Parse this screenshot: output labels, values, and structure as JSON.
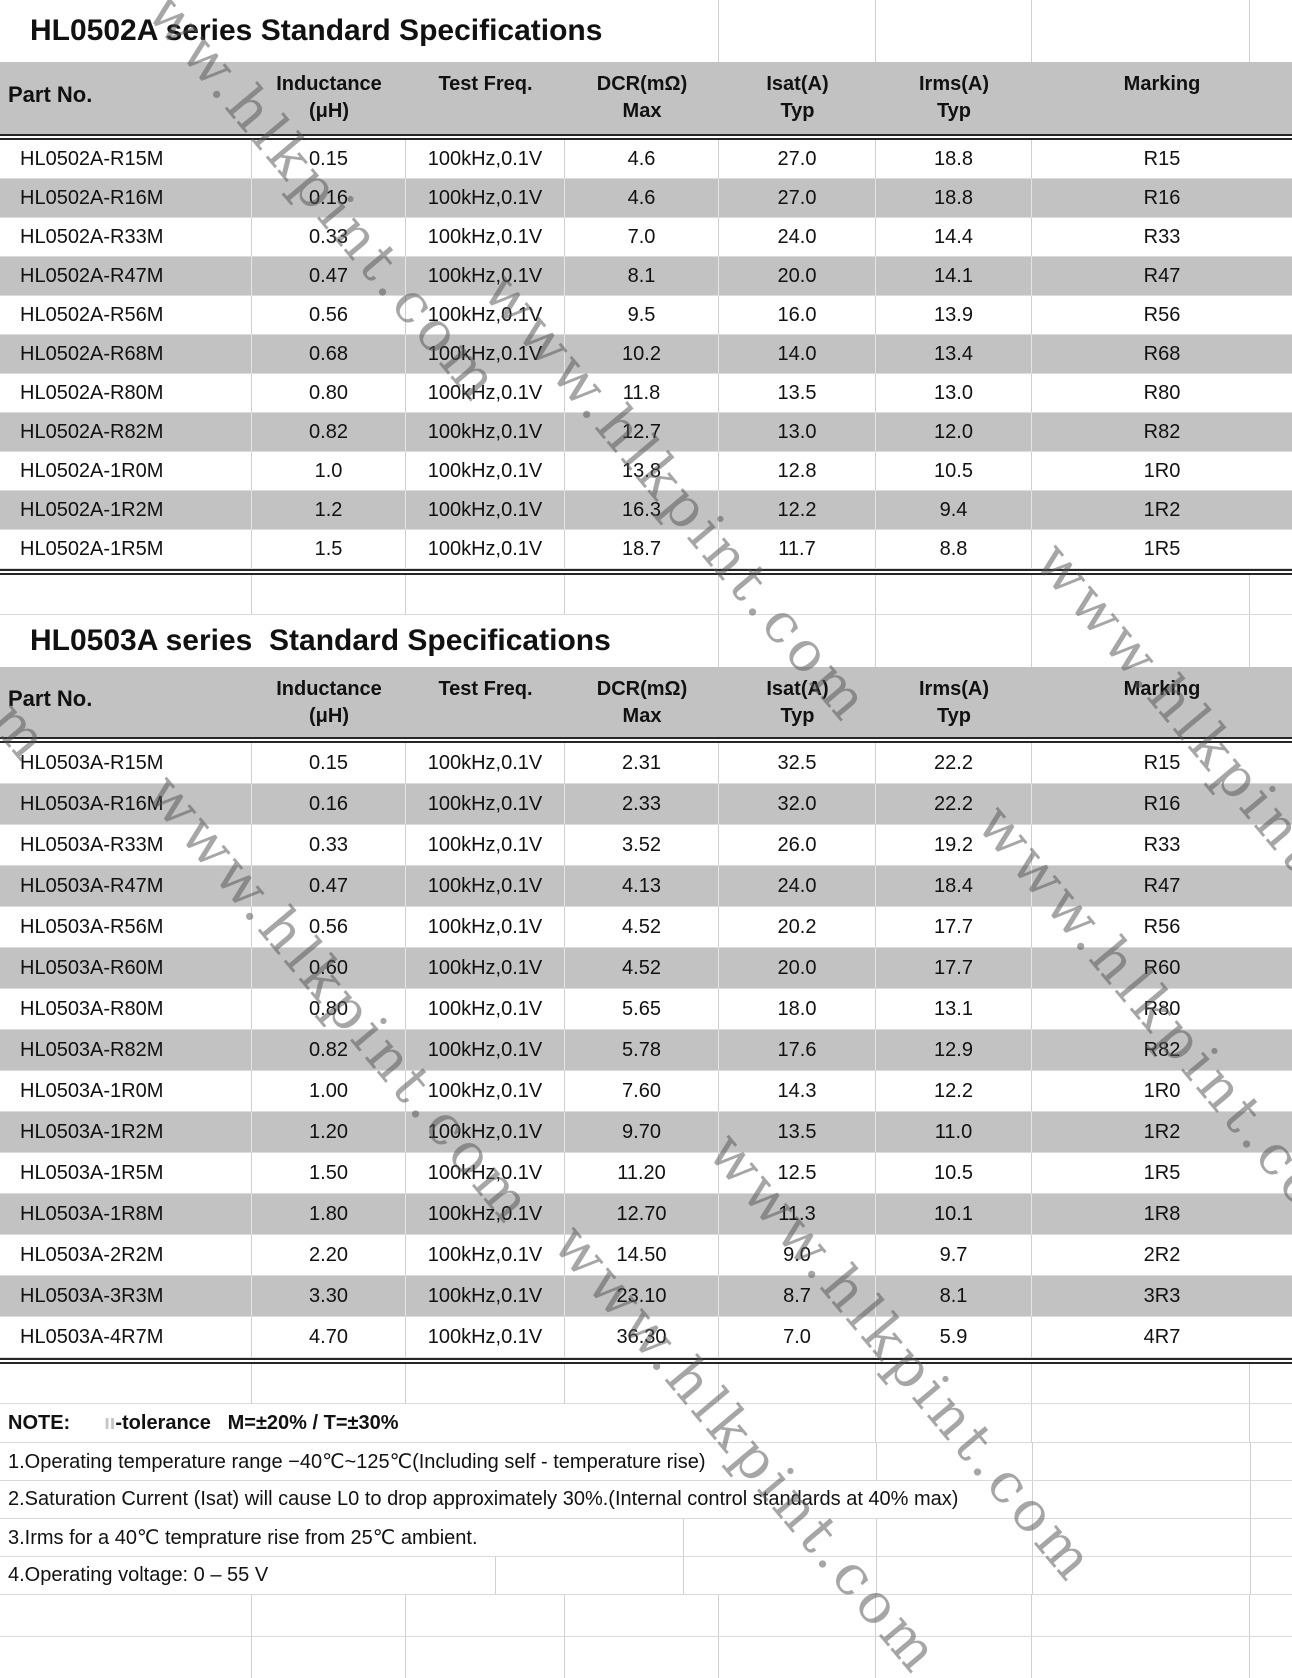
{
  "page": {
    "watermark_text": "www.hlkpint.com"
  },
  "table1": {
    "title": "HL0502A series Standard Specifications",
    "columns": [
      [
        "Part No.",
        ""
      ],
      [
        "Inductance",
        "(μH)"
      ],
      [
        "Test Freq.",
        ""
      ],
      [
        "DCR(mΩ)",
        "Max"
      ],
      [
        "Isat(A)",
        "Typ"
      ],
      [
        "Irms(A)",
        "Typ"
      ],
      [
        "Marking",
        ""
      ]
    ],
    "rows": [
      [
        "HL0502A-R15M",
        "0.15",
        "100kHz,0.1V",
        "4.6",
        "27.0",
        "18.8",
        "R15"
      ],
      [
        "HL0502A-R16M",
        "0.16",
        "100kHz,0.1V",
        "4.6",
        "27.0",
        "18.8",
        "R16"
      ],
      [
        "HL0502A-R33M",
        "0.33",
        "100kHz,0.1V",
        "7.0",
        "24.0",
        "14.4",
        "R33"
      ],
      [
        "HL0502A-R47M",
        "0.47",
        "100kHz,0.1V",
        "8.1",
        "20.0",
        "14.1",
        "R47"
      ],
      [
        "HL0502A-R56M",
        "0.56",
        "100kHz,0.1V",
        "9.5",
        "16.0",
        "13.9",
        "R56"
      ],
      [
        "HL0502A-R68M",
        "0.68",
        "100kHz,0.1V",
        "10.2",
        "14.0",
        "13.4",
        "R68"
      ],
      [
        "HL0502A-R80M",
        "0.80",
        "100kHz,0.1V",
        "11.8",
        "13.5",
        "13.0",
        "R80"
      ],
      [
        "HL0502A-R82M",
        "0.82",
        "100kHz,0.1V",
        "12.7",
        "13.0",
        "12.0",
        "R82"
      ],
      [
        "HL0502A-1R0M",
        "1.0",
        "100kHz,0.1V",
        "13.8",
        "12.8",
        "10.5",
        "1R0"
      ],
      [
        "HL0502A-1R2M",
        "1.2",
        "100kHz,0.1V",
        "16.3",
        "12.2",
        "9.4",
        "1R2"
      ],
      [
        "HL0502A-1R5M",
        "1.5",
        "100kHz,0.1V",
        "18.7",
        "11.7",
        "8.8",
        "1R5"
      ]
    ]
  },
  "table2": {
    "title": "HL0503A series  Standard Specifications",
    "columns": [
      [
        "Part No.",
        ""
      ],
      [
        "Inductance",
        "(μH)"
      ],
      [
        "Test Freq.",
        ""
      ],
      [
        "DCR(mΩ)",
        "Max"
      ],
      [
        "Isat(A)",
        "Typ"
      ],
      [
        "Irms(A)",
        "Typ"
      ],
      [
        "Marking",
        ""
      ]
    ],
    "rows": [
      [
        "HL0503A-R15M",
        "0.15",
        "100kHz,0.1V",
        "2.31",
        "32.5",
        "22.2",
        "R15"
      ],
      [
        "HL0503A-R16M",
        "0.16",
        "100kHz,0.1V",
        "2.33",
        "32.0",
        "22.2",
        "R16"
      ],
      [
        "HL0503A-R33M",
        "0.33",
        "100kHz,0.1V",
        "3.52",
        "26.0",
        "19.2",
        "R33"
      ],
      [
        "HL0503A-R47M",
        "0.47",
        "100kHz,0.1V",
        "4.13",
        "24.0",
        "18.4",
        "R47"
      ],
      [
        "HL0503A-R56M",
        "0.56",
        "100kHz,0.1V",
        "4.52",
        "20.2",
        "17.7",
        "R56"
      ],
      [
        "HL0503A-R60M",
        "0.60",
        "100kHz,0.1V",
        "4.52",
        "20.0",
        "17.7",
        "R60"
      ],
      [
        "HL0503A-R80M",
        "0.80",
        "100kHz,0.1V",
        "5.65",
        "18.0",
        "13.1",
        "R80"
      ],
      [
        "HL0503A-R82M",
        "0.82",
        "100kHz,0.1V",
        "5.78",
        "17.6",
        "12.9",
        "R82"
      ],
      [
        "HL0503A-1R0M",
        "1.00",
        "100kHz,0.1V",
        "7.60",
        "14.3",
        "12.2",
        "1R0"
      ],
      [
        "HL0503A-1R2M",
        "1.20",
        "100kHz,0.1V",
        "9.70",
        "13.5",
        "11.0",
        "1R2"
      ],
      [
        "HL0503A-1R5M",
        "1.50",
        "100kHz,0.1V",
        "11.20",
        "12.5",
        "10.5",
        "1R5"
      ],
      [
        "HL0503A-1R8M",
        "1.80",
        "100kHz,0.1V",
        "12.70",
        "11.3",
        "10.1",
        "1R8"
      ],
      [
        "HL0503A-2R2M",
        "2.20",
        "100kHz,0.1V",
        "14.50",
        "9.0",
        "9.7",
        "2R2"
      ],
      [
        "HL0503A-3R3M",
        "3.30",
        "100kHz,0.1V",
        "23.10",
        "8.7",
        "8.1",
        "3R3"
      ],
      [
        "HL0503A-4R7M",
        "4.70",
        "100kHz,0.1V",
        "36.30",
        "7.0",
        "5.9",
        "4R7"
      ]
    ]
  },
  "notes": {
    "label": "NOTE:",
    "faint_glyph": "ıı",
    "tolerance": "-tolerance   M=±20% / T=±30%",
    "items": [
      "1.Operating temperature range −40℃~125℃(Including self - temperature rise)",
      "2.Saturation Current (Isat) will cause L0 to drop approximately 30%.(Internal control standards at 40% max)",
      "3.Irms for a 40℃ temprature rise from 25℃ ambient.",
      "4.Operating voltage: 0 – 55 V"
    ]
  }
}
